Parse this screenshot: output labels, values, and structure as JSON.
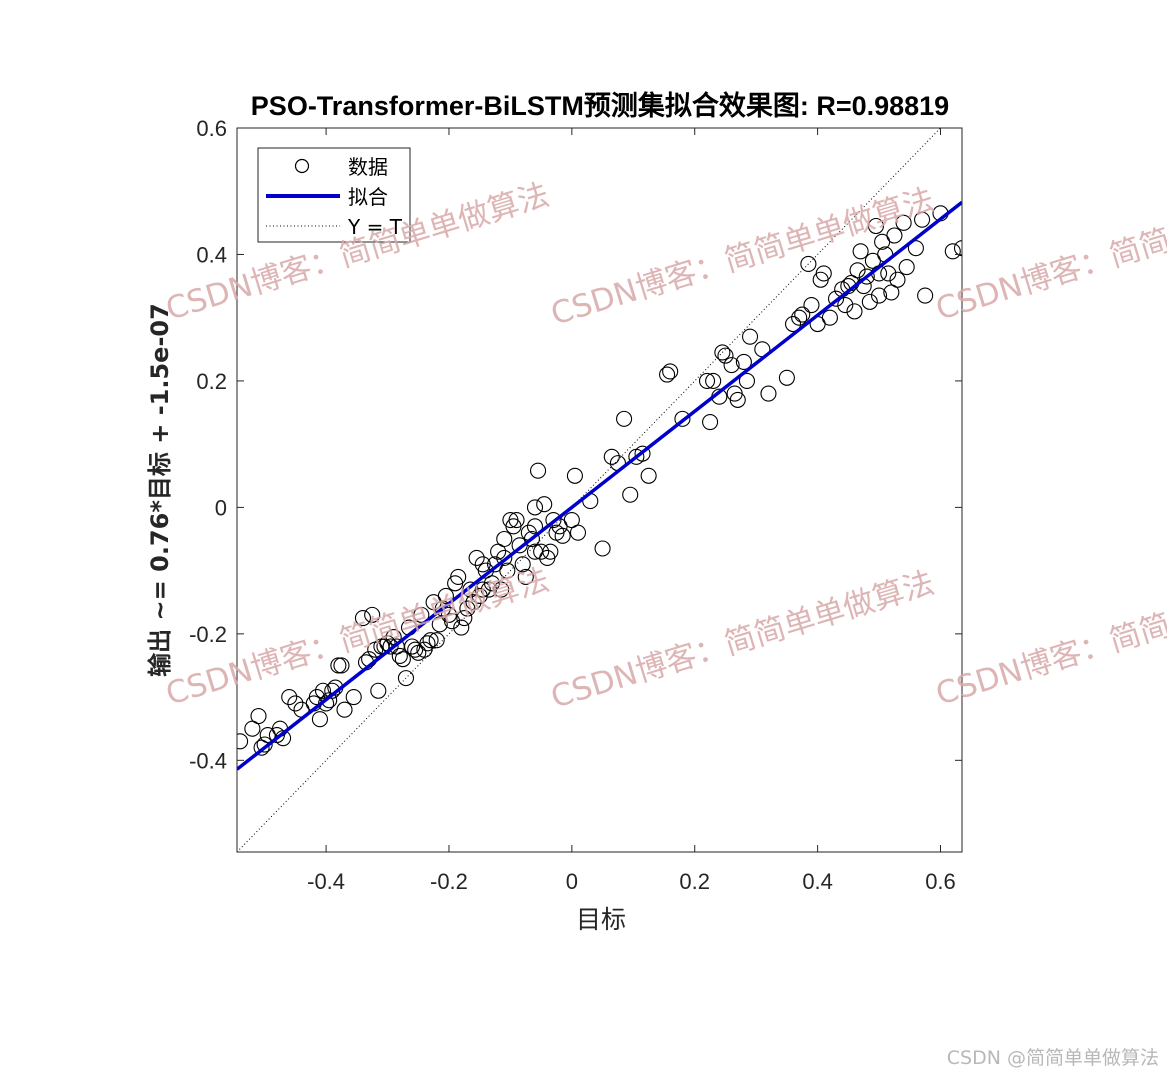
{
  "chart_data": {
    "type": "scatter",
    "title": "PSO-Transformer-BiLSTM预测集拟合效果图: R=0.98819",
    "xlabel": "目标",
    "ylabel": "输出 ~= 0.76*目标 + -1.5e-07",
    "xlim": [
      -0.545,
      0.635
    ],
    "ylim": [
      -0.545,
      0.6
    ],
    "xticks": [
      -0.4,
      -0.2,
      0,
      0.2,
      0.4,
      0.6
    ],
    "xtick_labels": [
      "-0.4",
      "-0.2",
      "0",
      "0.2",
      "0.4",
      "0.6"
    ],
    "yticks": [
      -0.4,
      -0.2,
      0,
      0.2,
      0.4,
      0.6
    ],
    "ytick_labels": [
      "-0.4",
      "-0.2",
      "0",
      "0.2",
      "0.4",
      "0.6"
    ],
    "grid": false,
    "legend_position": "top-left",
    "legend": [
      "数据",
      "拟合",
      "Y = T"
    ],
    "fit": {
      "slope": 0.76,
      "intercept": -1.5e-07,
      "color": "#0000cc"
    },
    "identity_line": {
      "slope": 1,
      "intercept": 0,
      "style": "dotted"
    },
    "points": [
      [
        -0.54,
        -0.37
      ],
      [
        -0.52,
        -0.35
      ],
      [
        -0.51,
        -0.33
      ],
      [
        -0.505,
        -0.38
      ],
      [
        -0.5,
        -0.375
      ],
      [
        -0.495,
        -0.36
      ],
      [
        -0.48,
        -0.36
      ],
      [
        -0.475,
        -0.35
      ],
      [
        -0.47,
        -0.365
      ],
      [
        -0.46,
        -0.3
      ],
      [
        -0.45,
        -0.31
      ],
      [
        -0.44,
        -0.32
      ],
      [
        -0.42,
        -0.31
      ],
      [
        -0.415,
        -0.3
      ],
      [
        -0.41,
        -0.335
      ],
      [
        -0.405,
        -0.29
      ],
      [
        -0.4,
        -0.31
      ],
      [
        -0.395,
        -0.305
      ],
      [
        -0.39,
        -0.29
      ],
      [
        -0.385,
        -0.285
      ],
      [
        -0.38,
        -0.25
      ],
      [
        -0.375,
        -0.25
      ],
      [
        -0.37,
        -0.32
      ],
      [
        -0.355,
        -0.3
      ],
      [
        -0.34,
        -0.175
      ],
      [
        -0.335,
        -0.245
      ],
      [
        -0.33,
        -0.24
      ],
      [
        -0.325,
        -0.17
      ],
      [
        -0.32,
        -0.225
      ],
      [
        -0.315,
        -0.29
      ],
      [
        -0.31,
        -0.22
      ],
      [
        -0.305,
        -0.22
      ],
      [
        -0.3,
        -0.215
      ],
      [
        -0.295,
        -0.22
      ],
      [
        -0.29,
        -0.205
      ],
      [
        -0.285,
        -0.22
      ],
      [
        -0.28,
        -0.235
      ],
      [
        -0.275,
        -0.24
      ],
      [
        -0.27,
        -0.27
      ],
      [
        -0.265,
        -0.19
      ],
      [
        -0.26,
        -0.22
      ],
      [
        -0.255,
        -0.225
      ],
      [
        -0.25,
        -0.23
      ],
      [
        -0.245,
        -0.17
      ],
      [
        -0.24,
        -0.225
      ],
      [
        -0.235,
        -0.215
      ],
      [
        -0.23,
        -0.21
      ],
      [
        -0.225,
        -0.15
      ],
      [
        -0.22,
        -0.21
      ],
      [
        -0.215,
        -0.185
      ],
      [
        -0.21,
        -0.16
      ],
      [
        -0.205,
        -0.14
      ],
      [
        -0.2,
        -0.17
      ],
      [
        -0.195,
        -0.18
      ],
      [
        -0.19,
        -0.12
      ],
      [
        -0.185,
        -0.11
      ],
      [
        -0.18,
        -0.19
      ],
      [
        -0.175,
        -0.175
      ],
      [
        -0.17,
        -0.16
      ],
      [
        -0.165,
        -0.13
      ],
      [
        -0.16,
        -0.15
      ],
      [
        -0.155,
        -0.08
      ],
      [
        -0.15,
        -0.14
      ],
      [
        -0.145,
        -0.13
      ],
      [
        -0.14,
        -0.1
      ],
      [
        -0.135,
        -0.13
      ],
      [
        -0.13,
        -0.12
      ],
      [
        -0.125,
        -0.09
      ],
      [
        -0.12,
        -0.07
      ],
      [
        -0.115,
        -0.13
      ],
      [
        -0.11,
        -0.08
      ],
      [
        -0.105,
        -0.1
      ],
      [
        -0.1,
        -0.02
      ],
      [
        -0.095,
        -0.03
      ],
      [
        -0.09,
        -0.02
      ],
      [
        -0.085,
        -0.06
      ],
      [
        -0.08,
        -0.09
      ],
      [
        -0.075,
        -0.11
      ],
      [
        -0.07,
        -0.04
      ],
      [
        -0.065,
        -0.05
      ],
      [
        -0.06,
        -0.07
      ],
      [
        -0.055,
        0.058
      ],
      [
        -0.05,
        -0.07
      ],
      [
        -0.045,
        0.005
      ],
      [
        -0.04,
        -0.08
      ],
      [
        -0.035,
        -0.07
      ],
      [
        -0.03,
        -0.02
      ],
      [
        -0.025,
        -0.04
      ],
      [
        -0.02,
        -0.03
      ],
      [
        -0.015,
        -0.045
      ],
      [
        0.0,
        -0.02
      ],
      [
        0.005,
        0.05
      ],
      [
        0.01,
        -0.04
      ],
      [
        0.03,
        0.01
      ],
      [
        0.05,
        -0.065
      ],
      [
        0.065,
        0.08
      ],
      [
        0.075,
        0.07
      ],
      [
        0.085,
        0.14
      ],
      [
        0.095,
        0.02
      ],
      [
        0.105,
        0.08
      ],
      [
        0.115,
        0.085
      ],
      [
        0.125,
        0.05
      ],
      [
        0.155,
        0.21
      ],
      [
        0.16,
        0.215
      ],
      [
        0.18,
        0.14
      ],
      [
        0.22,
        0.2
      ],
      [
        0.225,
        0.135
      ],
      [
        0.23,
        0.2
      ],
      [
        0.24,
        0.175
      ],
      [
        0.245,
        0.245
      ],
      [
        0.25,
        0.24
      ],
      [
        0.26,
        0.225
      ],
      [
        0.265,
        0.18
      ],
      [
        0.27,
        0.17
      ],
      [
        0.28,
        0.23
      ],
      [
        0.285,
        0.2
      ],
      [
        0.29,
        0.27
      ],
      [
        0.31,
        0.25
      ],
      [
        0.32,
        0.18
      ],
      [
        0.35,
        0.205
      ],
      [
        0.36,
        0.29
      ],
      [
        0.37,
        0.3
      ],
      [
        0.375,
        0.305
      ],
      [
        0.385,
        0.385
      ],
      [
        0.39,
        0.32
      ],
      [
        0.4,
        0.29
      ],
      [
        0.405,
        0.36
      ],
      [
        0.41,
        0.37
      ],
      [
        0.42,
        0.3
      ],
      [
        0.43,
        0.33
      ],
      [
        0.44,
        0.345
      ],
      [
        0.445,
        0.32
      ],
      [
        0.45,
        0.35
      ],
      [
        0.455,
        0.355
      ],
      [
        0.46,
        0.31
      ],
      [
        0.465,
        0.375
      ],
      [
        0.47,
        0.405
      ],
      [
        0.475,
        0.35
      ],
      [
        0.48,
        0.365
      ],
      [
        0.485,
        0.325
      ],
      [
        0.49,
        0.39
      ],
      [
        0.495,
        0.445
      ],
      [
        0.5,
        0.335
      ],
      [
        0.505,
        0.42
      ],
      [
        0.51,
        0.4
      ],
      [
        0.515,
        0.37
      ],
      [
        0.52,
        0.34
      ],
      [
        0.525,
        0.43
      ],
      [
        0.53,
        0.36
      ],
      [
        0.54,
        0.45
      ],
      [
        0.545,
        0.38
      ],
      [
        0.56,
        0.41
      ],
      [
        0.57,
        0.455
      ],
      [
        0.575,
        0.335
      ],
      [
        0.6,
        0.465
      ],
      [
        0.62,
        0.405
      ],
      [
        0.635,
        0.41
      ],
      [
        0.5,
        0.37
      ],
      [
        -0.06,
        -0.03
      ],
      [
        -0.11,
        -0.05
      ],
      [
        -0.145,
        -0.09
      ],
      [
        -0.06,
        0.0
      ]
    ]
  },
  "watermark": {
    "text": "CSDN博客：简简单单做算法",
    "color": "#d8a8a8"
  },
  "footer": {
    "text": "CSDN @简简单单做算法"
  }
}
